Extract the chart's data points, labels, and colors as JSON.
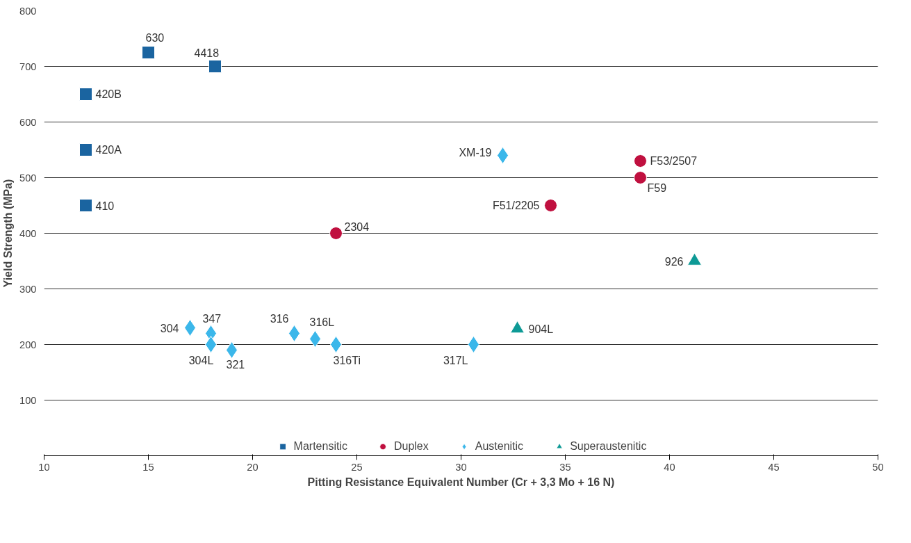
{
  "chart_data": {
    "type": "scatter",
    "xlabel": "Pitting Resistance Equivalent Number (Cr + 3,3 Mo + 16 N)",
    "ylabel": "Yield Strength (MPa)",
    "xlim": [
      10,
      50
    ],
    "xticks": [
      10,
      15,
      20,
      25,
      30,
      35,
      40,
      45,
      50
    ],
    "ylim": [
      0,
      800
    ],
    "yticks": [
      100,
      200,
      300,
      400,
      500,
      600,
      700,
      800
    ],
    "grid": "y",
    "legend": "bottom",
    "series": [
      {
        "name": "Martensitic",
        "color": "#1a64a0",
        "marker": "square",
        "x": [
          12,
          12,
          12,
          15,
          18.2
        ],
        "values": [
          450,
          550,
          650,
          725,
          700
        ]
      },
      {
        "name": "Duplex",
        "color": "#c0103f",
        "marker": "circle",
        "x": [
          24,
          34.3,
          38.6,
          38.6
        ],
        "values": [
          400,
          450,
          530,
          500
        ]
      },
      {
        "name": "Austenitic",
        "color": "#3bb7ea",
        "marker": "diamond",
        "x": [
          32,
          17,
          18,
          18,
          19,
          22,
          23,
          24,
          30.6
        ],
        "values": [
          540,
          230,
          220,
          200,
          190,
          220,
          210,
          200,
          200
        ]
      },
      {
        "name": "Superaustenitic",
        "color": "#0e9a96",
        "marker": "triangle",
        "x": [
          32.7,
          41.2
        ],
        "values": [
          228,
          350
        ]
      }
    ],
    "annotations": [
      {
        "text": "410",
        "x": 12,
        "y": 450
      },
      {
        "text": "420A",
        "x": 12,
        "y": 550
      },
      {
        "text": "420B",
        "x": 12,
        "y": 650
      },
      {
        "text": "630",
        "x": 15,
        "y": 725
      },
      {
        "text": "4418",
        "x": 18.2,
        "y": 700
      },
      {
        "text": "2304",
        "x": 24,
        "y": 400
      },
      {
        "text": "F51/2205",
        "x": 34.3,
        "y": 450
      },
      {
        "text": "F53/2507",
        "x": 38.6,
        "y": 530
      },
      {
        "text": "F59",
        "x": 38.6,
        "y": 500
      },
      {
        "text": "XM-19",
        "x": 32,
        "y": 540
      },
      {
        "text": "304",
        "x": 17,
        "y": 230
      },
      {
        "text": "347",
        "x": 18,
        "y": 220
      },
      {
        "text": "304L",
        "x": 18,
        "y": 200
      },
      {
        "text": "321",
        "x": 19,
        "y": 190
      },
      {
        "text": "316",
        "x": 22,
        "y": 220
      },
      {
        "text": "316L",
        "x": 23,
        "y": 210
      },
      {
        "text": "316Ti",
        "x": 24,
        "y": 200
      },
      {
        "text": "317L",
        "x": 30.6,
        "y": 200
      },
      {
        "text": "904L",
        "x": 32.7,
        "y": 228
      },
      {
        "text": "926",
        "x": 41.2,
        "y": 350
      }
    ]
  }
}
